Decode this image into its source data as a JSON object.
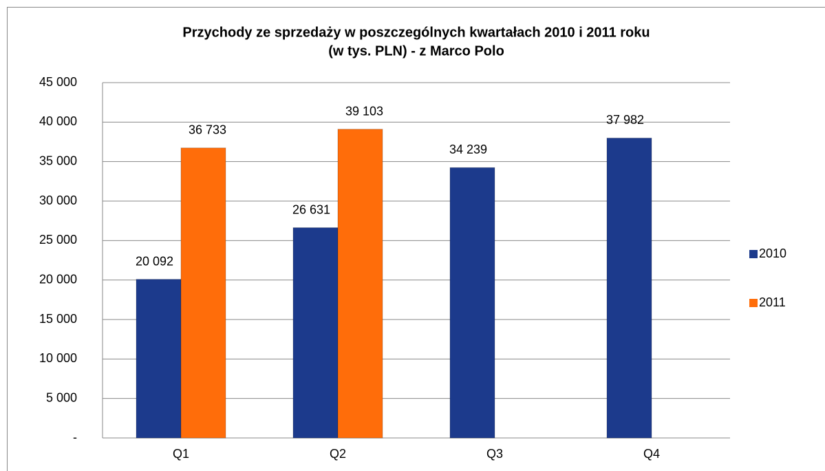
{
  "chart_data": {
    "type": "bar",
    "title": "Przychody  ze sprzedaży w poszczególnych  kwartałach 2010  i 2011  roku",
    "subtitle": "(w tys. PLN)  - z Marco Polo",
    "categories": [
      "Q1",
      "Q2",
      "Q3",
      "Q4"
    ],
    "series": [
      {
        "name": "2010",
        "color": "#1c3a8c",
        "values": [
          20092,
          26631,
          34239,
          37982
        ],
        "value_labels": [
          "20 092",
          "26 631",
          "34 239",
          "37 982"
        ]
      },
      {
        "name": "2011",
        "color": "#ff6d0a",
        "values": [
          36733,
          39103,
          null,
          null
        ],
        "value_labels": [
          "36 733",
          "39 103",
          null,
          null
        ]
      }
    ],
    "ylim": [
      0,
      45000
    ],
    "yticks": [
      {
        "value": 0,
        "label": "-"
      },
      {
        "value": 5000,
        "label": "5 000"
      },
      {
        "value": 10000,
        "label": "10 000"
      },
      {
        "value": 15000,
        "label": "15 000"
      },
      {
        "value": 20000,
        "label": "20 000"
      },
      {
        "value": 25000,
        "label": "25 000"
      },
      {
        "value": 30000,
        "label": "30 000"
      },
      {
        "value": 35000,
        "label": "35 000"
      },
      {
        "value": 40000,
        "label": "40 000"
      },
      {
        "value": 45000,
        "label": "45 000"
      }
    ],
    "grid": true,
    "legend": "right"
  }
}
